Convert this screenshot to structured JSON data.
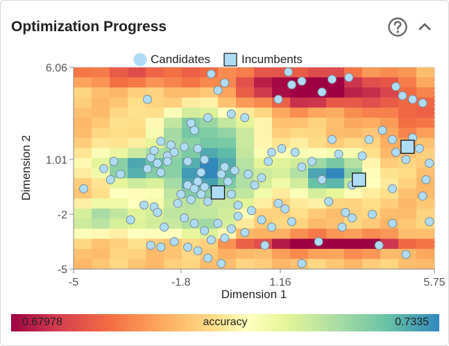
{
  "header": {
    "title": "Optimization Progress",
    "help_icon": "question-circle-icon",
    "collapse_icon": "chevron-up-icon"
  },
  "chart_data": {
    "type": "scatter",
    "title": "",
    "xlabel": "Dimension 1",
    "ylabel": "Dimension 2",
    "xlim": [
      -5,
      5.75
    ],
    "ylim": [
      -5,
      6.06
    ],
    "xtick_labels": [
      "-5",
      "-1.8",
      "1.16",
      "5.75"
    ],
    "xtick_values": [
      -5,
      -1.8,
      1.16,
      5.75
    ],
    "ytick_labels": [
      "6.06",
      "1.01",
      "-2",
      "-5"
    ],
    "ytick_values": [
      6.06,
      1.01,
      -2,
      -5
    ],
    "legend": {
      "position": "top",
      "entries": [
        "Candidates",
        "Incumbents"
      ]
    },
    "colorbar": {
      "label": "accuracy",
      "min_label": "0.67978",
      "max_label": "0.7335",
      "min": 0.67978,
      "max": 0.7335
    },
    "colors": {
      "candidate_fill": "#aedcf5",
      "candidate_stroke": "#7a8a96",
      "incumbent_fill": "#aedcf5",
      "incumbent_stroke": "#111111"
    },
    "heatmap": {
      "grid": [
        20,
        20
      ],
      "centers": [
        {
          "x": -1.0,
          "y": 0.4,
          "v": 0.96,
          "sx": 1.6,
          "sy": 2.2
        },
        {
          "x": -3.4,
          "y": 0.6,
          "v": 0.75,
          "sx": 1.0,
          "sy": 0.9
        },
        {
          "x": -4.0,
          "y": -2.2,
          "v": 0.55,
          "sx": 1.6,
          "sy": 0.9
        },
        {
          "x": -1.2,
          "y": 2.9,
          "v": 0.45,
          "sx": 1.4,
          "sy": 1.0
        },
        {
          "x": 2.6,
          "y": 0.2,
          "v": 0.95,
          "sx": 1.2,
          "sy": 1.1
        },
        {
          "x": -1.3,
          "y": -2.6,
          "v": 0.45,
          "sx": 1.0,
          "sy": 0.8
        }
      ],
      "lows": [
        {
          "x": 2.1,
          "y": 4.9,
          "v": -0.95,
          "sx": 2.0,
          "sy": 1.0
        },
        {
          "x": 2.6,
          "y": -3.6,
          "v": -0.9,
          "sx": 2.6,
          "sy": 0.45
        },
        {
          "x": -3.0,
          "y": 5.6,
          "v": -0.45,
          "sx": 3.0,
          "sy": 0.5
        },
        {
          "x": 5.0,
          "y": 3.8,
          "v": -0.35,
          "sx": 1.2,
          "sy": 1.6
        }
      ],
      "base": 0.42
    },
    "candidates": [
      [
        -4.7,
        -0.6
      ],
      [
        -4.1,
        0.5
      ],
      [
        -3.9,
        -0.1
      ],
      [
        -3.8,
        0.9
      ],
      [
        -3.6,
        0.2
      ],
      [
        -3.3,
        -2.3
      ],
      [
        -2.8,
        4.3
      ],
      [
        -2.4,
        2.0
      ],
      [
        -2.8,
        0.5
      ],
      [
        -2.7,
        1.1
      ],
      [
        -2.6,
        1.5
      ],
      [
        -2.5,
        0.8
      ],
      [
        -2.4,
        0.3
      ],
      [
        -2.2,
        1.2
      ],
      [
        -2.1,
        1.8
      ],
      [
        -2.0,
        1.4
      ],
      [
        -1.7,
        1.7
      ],
      [
        -1.6,
        0.9
      ],
      [
        -1.5,
        3.0
      ],
      [
        -1.4,
        2.6
      ],
      [
        -1.3,
        1.6
      ],
      [
        -1.2,
        0.3
      ],
      [
        -1.1,
        1.0
      ],
      [
        -1.0,
        3.3
      ],
      [
        -1.6,
        -0.4
      ],
      [
        -1.4,
        -0.6
      ],
      [
        -1.3,
        -0.2
      ],
      [
        -1.2,
        -0.9
      ],
      [
        -1.1,
        -0.5
      ],
      [
        -1.0,
        -1.3
      ],
      [
        -0.8,
        -0.7
      ],
      [
        -0.6,
        0.2
      ],
      [
        -0.5,
        0.6
      ],
      [
        -0.4,
        -0.2
      ],
      [
        -0.3,
        -0.9
      ],
      [
        -0.2,
        0.4
      ],
      [
        -0.1,
        -1.5
      ],
      [
        0.2,
        0.2
      ],
      [
        0.4,
        -0.4
      ],
      [
        0.6,
        0.0
      ],
      [
        -0.9,
        5.7
      ],
      [
        -0.7,
        4.8
      ],
      [
        -0.5,
        5.2
      ],
      [
        -0.3,
        3.5
      ],
      [
        0.1,
        3.3
      ],
      [
        -2.9,
        -1.5
      ],
      [
        -2.6,
        -1.6
      ],
      [
        -2.5,
        -1.9
      ],
      [
        -2.3,
        -2.7
      ],
      [
        -1.9,
        -1.4
      ],
      [
        -1.7,
        -2.2
      ],
      [
        -1.4,
        -2.5
      ],
      [
        -1.1,
        -2.9
      ],
      [
        -0.9,
        -3.4
      ],
      [
        -0.7,
        -2.5
      ],
      [
        -0.5,
        -3.3
      ],
      [
        -0.3,
        -2.8
      ],
      [
        -0.1,
        -2.1
      ],
      [
        0.1,
        -3.0
      ],
      [
        0.3,
        -1.8
      ],
      [
        0.6,
        -2.3
      ],
      [
        0.9,
        -2.7
      ],
      [
        1.1,
        -1.4
      ],
      [
        1.3,
        -1.7
      ],
      [
        1.5,
        -2.4
      ],
      [
        -2.7,
        -3.7
      ],
      [
        -2.0,
        -3.5
      ],
      [
        -1.6,
        -3.8
      ],
      [
        -1.3,
        -4.0
      ],
      [
        -1.0,
        -4.4
      ],
      [
        -0.6,
        -4.7
      ],
      [
        0.7,
        -3.7
      ],
      [
        1.4,
        5.8
      ],
      [
        1.5,
        5.1
      ],
      [
        1.8,
        5.3
      ],
      [
        2.4,
        4.7
      ],
      [
        2.7,
        5.4
      ],
      [
        3.2,
        5.5
      ],
      [
        1.1,
        4.3
      ],
      [
        0.9,
        1.4
      ],
      [
        0.8,
        0.9
      ],
      [
        1.2,
        1.6
      ],
      [
        1.6,
        1.4
      ],
      [
        1.8,
        0.6
      ],
      [
        2.1,
        0.9
      ],
      [
        2.7,
        2.1
      ],
      [
        2.4,
        -0.1
      ],
      [
        2.9,
        1.3
      ],
      [
        3.3,
        -0.4
      ],
      [
        3.6,
        1.2
      ],
      [
        3.8,
        2.1
      ],
      [
        4.2,
        2.6
      ],
      [
        4.5,
        2.1
      ],
      [
        4.6,
        1.4
      ],
      [
        4.9,
        1.0
      ],
      [
        5.1,
        2.2
      ],
      [
        5.3,
        1.6
      ],
      [
        5.6,
        0.8
      ],
      [
        5.5,
        -0.1
      ],
      [
        5.4,
        -1.0
      ],
      [
        5.6,
        -2.4
      ],
      [
        4.5,
        -0.6
      ],
      [
        4.5,
        -2.5
      ],
      [
        4.1,
        -3.7
      ],
      [
        3.1,
        -1.9
      ],
      [
        3.3,
        -2.2
      ],
      [
        3.0,
        -2.7
      ],
      [
        3.9,
        -2.0
      ],
      [
        2.6,
        -1.3
      ],
      [
        2.3,
        -3.5
      ],
      [
        4.9,
        -4.2
      ],
      [
        1.8,
        -4.7
      ],
      [
        4.6,
        5.0
      ],
      [
        4.8,
        4.5
      ],
      [
        5.1,
        4.3
      ],
      [
        5.4,
        4.1
      ],
      [
        -2.4,
        -3.8
      ],
      [
        -1.8,
        -0.9
      ],
      [
        -2.2,
        0.9
      ],
      [
        -1.5,
        -1.2
      ]
    ],
    "incumbents": [
      [
        -0.7,
        -0.8
      ],
      [
        3.5,
        -0.1
      ],
      [
        4.95,
        1.7
      ]
    ]
  }
}
